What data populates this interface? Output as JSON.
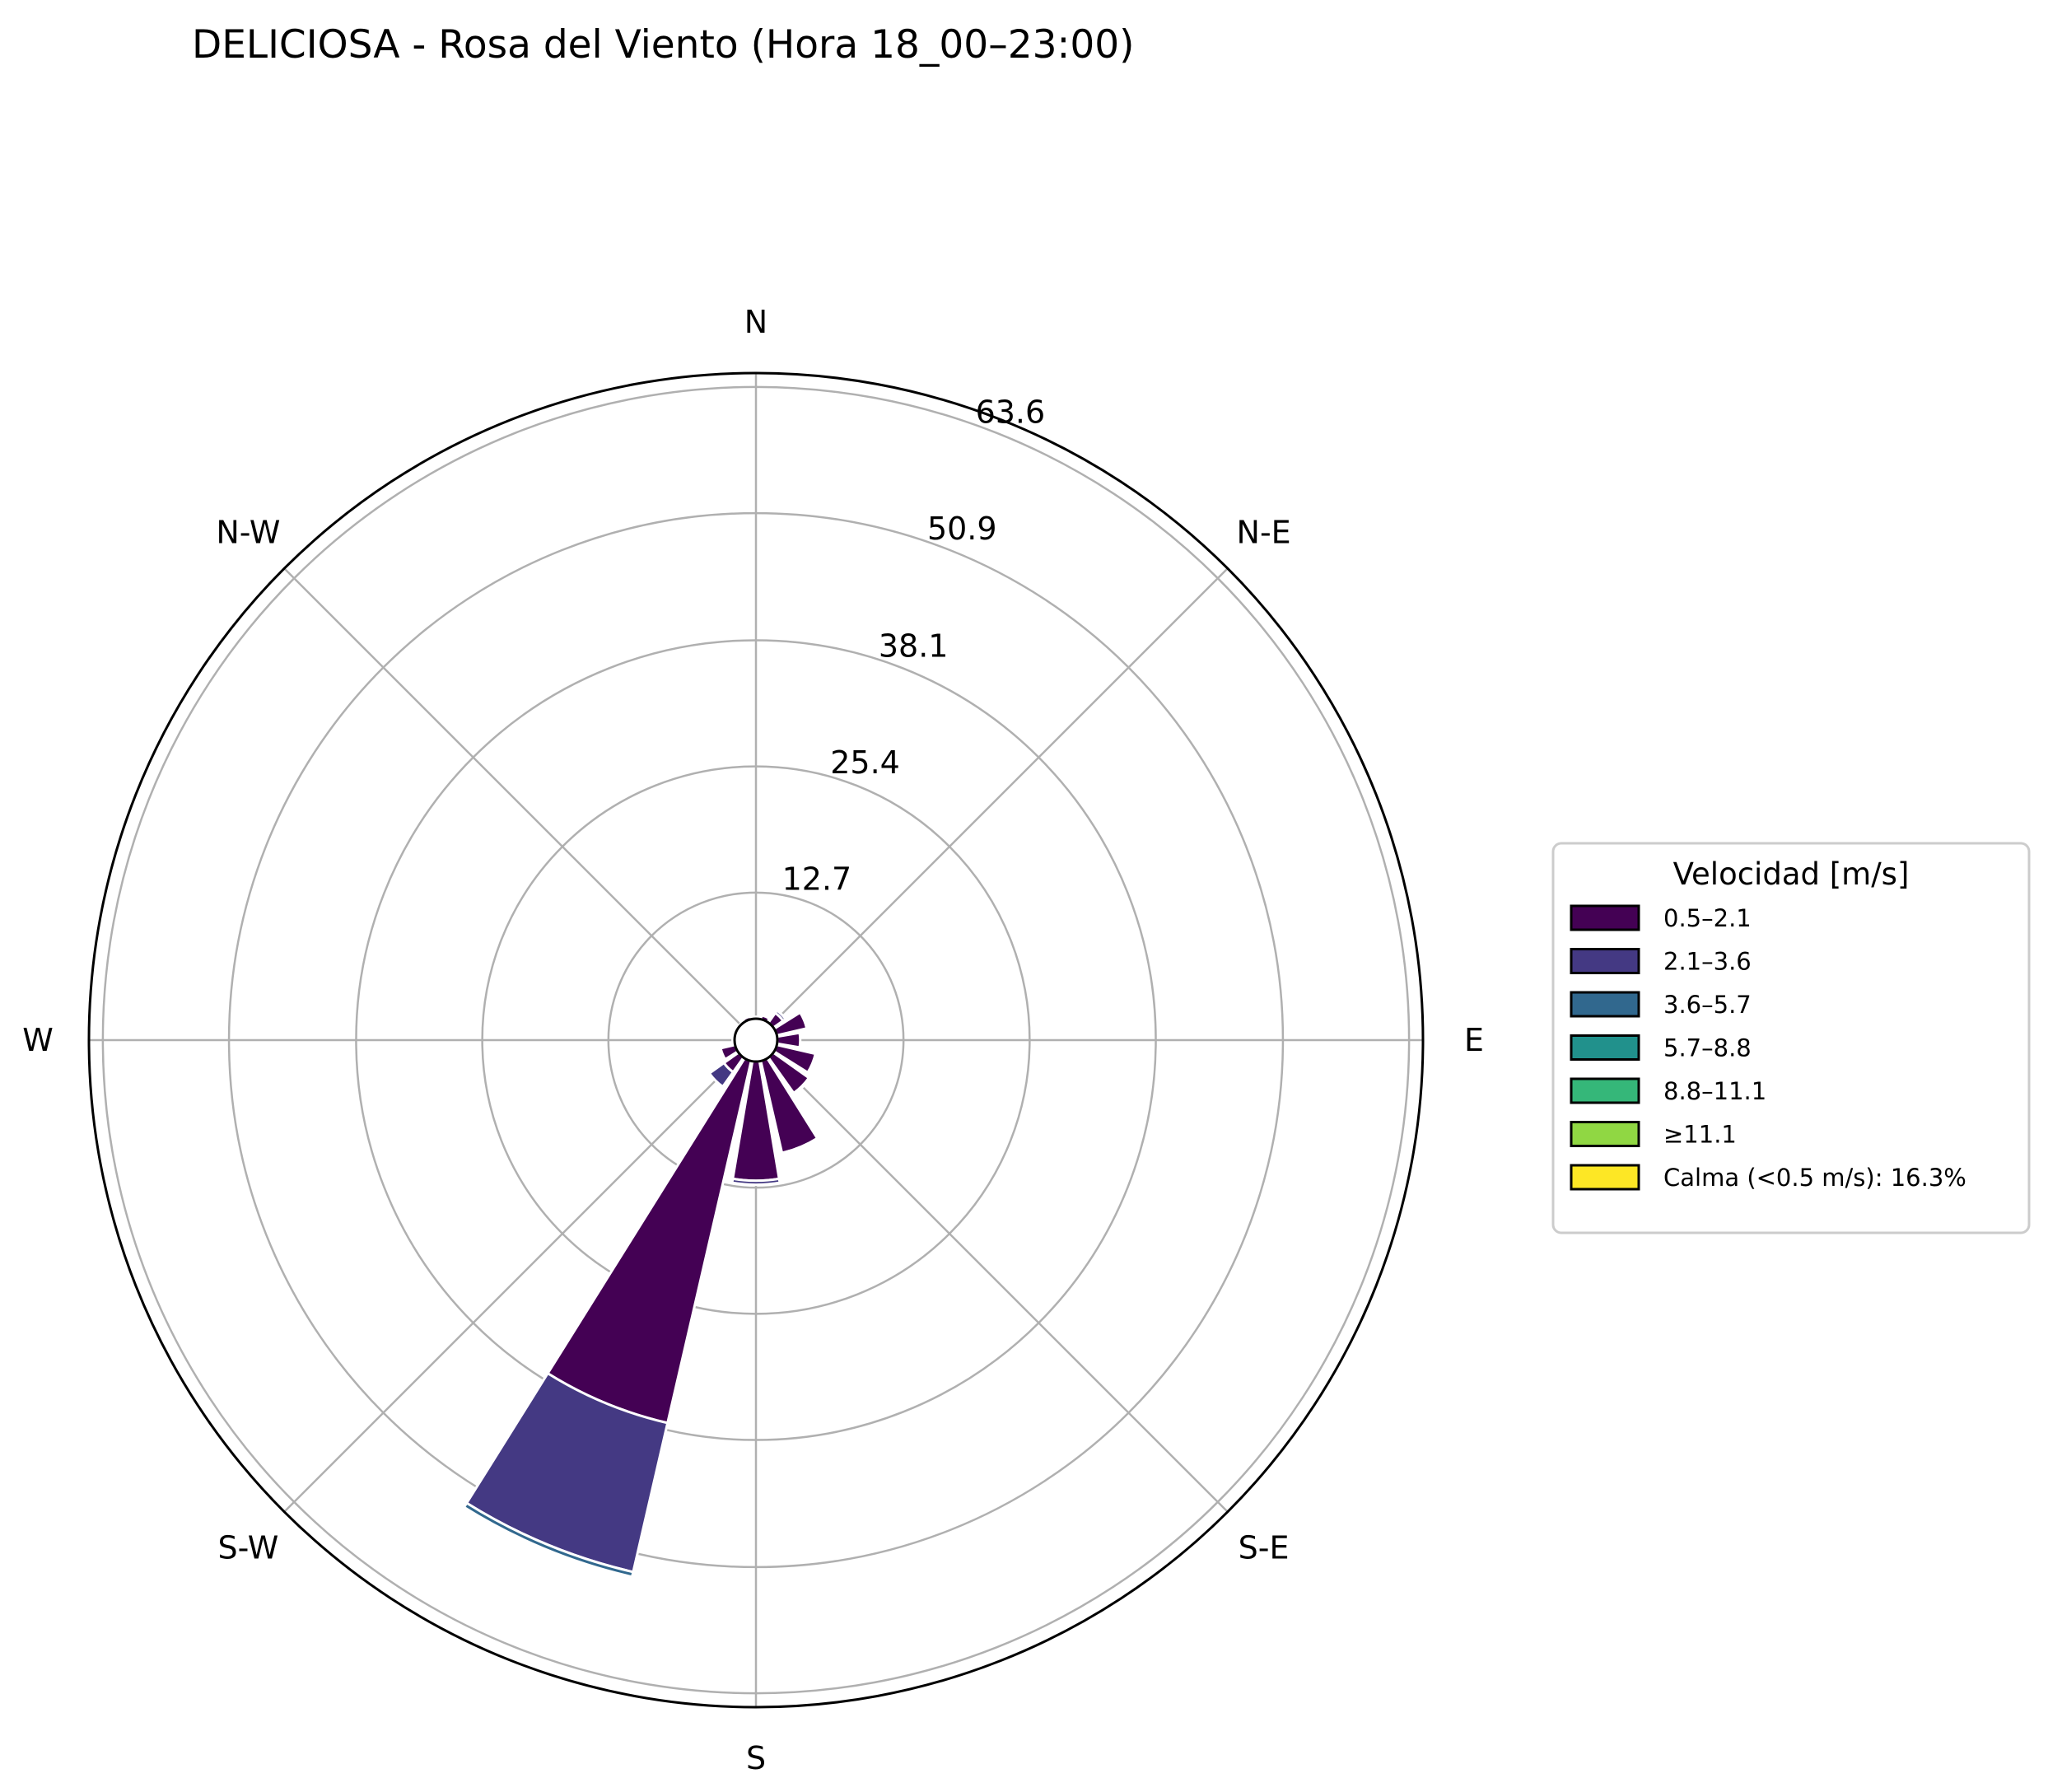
{
  "chart_data": {
    "type": "windrose",
    "title": "DELICIOSA - Rosa del Viento (Hora 18_00–23:00)",
    "directions": [
      "N",
      "N-E",
      "E",
      "S-E",
      "S",
      "S-W",
      "W",
      "N-W"
    ],
    "radial_ticks": [
      "12.7",
      "25.4",
      "38.1",
      "50.9",
      "63.6"
    ],
    "radial_tick_values": [
      12.7,
      25.4,
      38.1,
      50.9,
      63.6
    ],
    "rmax": 65,
    "grid": true,
    "sector_angles": [
      0,
      22.5,
      45,
      67.5,
      90,
      112.5,
      135,
      157.5,
      180,
      202.5,
      225,
      247.5,
      270,
      292.5,
      315,
      337.5
    ],
    "legend": {
      "title": "Velocidad [m/s]",
      "placement": "right"
    },
    "series": [
      {
        "name": "0.5–2.1",
        "color": "#440154",
        "values": [
          0.2,
          0.4,
          1.2,
          3.1,
          2.3,
          4.0,
          4.4,
          9.5,
          12.0,
          37.4,
          1.8,
          1.5,
          0.2,
          0.1,
          0.1,
          0.3
        ]
      },
      {
        "name": "2.1–3.6",
        "color": "#443983",
        "values": [
          0,
          0,
          0.3,
          0.1,
          0,
          0.1,
          0.1,
          0.2,
          0.4,
          15.4,
          1.8,
          0.1,
          0,
          0,
          0,
          0
        ]
      },
      {
        "name": "3.6–5.7",
        "color": "#31688e",
        "values": [
          0,
          0,
          0,
          0,
          0,
          0,
          0,
          0,
          0,
          0.5,
          0,
          0,
          0,
          0,
          0,
          0
        ]
      },
      {
        "name": "5.7–8.8",
        "color": "#21918c",
        "values": [
          0,
          0,
          0,
          0,
          0,
          0,
          0,
          0,
          0,
          0,
          0,
          0,
          0,
          0,
          0,
          0
        ]
      },
      {
        "name": "8.8–11.1",
        "color": "#35b779",
        "values": [
          0,
          0,
          0,
          0,
          0,
          0,
          0,
          0,
          0,
          0,
          0,
          0,
          0,
          0,
          0,
          0
        ]
      },
      {
        "name": "≥11.1",
        "color": "#90d743",
        "values": [
          0,
          0,
          0,
          0,
          0,
          0,
          0,
          0,
          0,
          0,
          0,
          0,
          0,
          0,
          0,
          0
        ]
      }
    ],
    "calm": {
      "label": "Calma (<0.5 m/s): 16.3%",
      "value": 16.3,
      "color": "#fde725"
    }
  }
}
